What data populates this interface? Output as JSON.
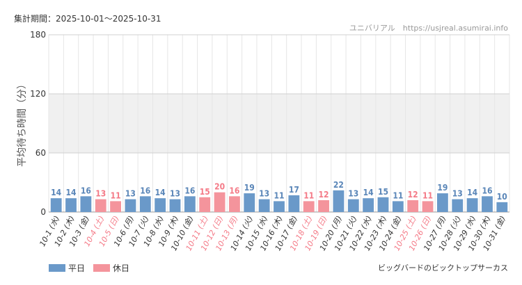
{
  "header": {
    "period": "集計期間：2025-10-01～2025-10-31",
    "site": "ユニバリアル　https://usjreal.asumirai.info"
  },
  "attraction": "ビッグバードのビックトップサーカス",
  "legend": {
    "weekday": {
      "label": "平日",
      "color": "#6a99c9"
    },
    "holiday": {
      "label": "休日",
      "color": "#f4949c"
    }
  },
  "chart_data": {
    "type": "bar",
    "title": "",
    "xlabel": "",
    "ylabel": "平均待ち時間（分）",
    "ylim": [
      0,
      180
    ],
    "yticks": [
      0,
      60,
      120,
      180
    ],
    "shaded_band": [
      60,
      120
    ],
    "grid": true,
    "legend_position": "bottom-left",
    "categories": [
      "10-1 (水)",
      "10-2 (木)",
      "10-3 (金)",
      "10-4 (土)",
      "10-5 (日)",
      "10-6 (月)",
      "10-7 (火)",
      "10-8 (水)",
      "10-9 (木)",
      "10-10 (金)",
      "10-11 (土)",
      "10-12 (日)",
      "10-13 (月)",
      "10-14 (火)",
      "10-15 (水)",
      "10-16 (木)",
      "10-17 (金)",
      "10-18 (土)",
      "10-19 (日)",
      "10-20 (月)",
      "10-21 (火)",
      "10-22 (水)",
      "10-23 (木)",
      "10-24 (金)",
      "10-25 (土)",
      "10-26 (日)",
      "10-27 (月)",
      "10-28 (火)",
      "10-29 (水)",
      "10-30 (木)",
      "10-31 (金)"
    ],
    "values": [
      14,
      14,
      16,
      13,
      11,
      13,
      16,
      14,
      13,
      16,
      15,
      20,
      16,
      19,
      13,
      11,
      17,
      11,
      12,
      22,
      13,
      14,
      15,
      11,
      12,
      11,
      19,
      13,
      14,
      16,
      10
    ],
    "day_type": [
      "weekday",
      "weekday",
      "weekday",
      "holiday",
      "holiday",
      "weekday",
      "weekday",
      "weekday",
      "weekday",
      "weekday",
      "holiday",
      "holiday",
      "holiday",
      "weekday",
      "weekday",
      "weekday",
      "weekday",
      "holiday",
      "holiday",
      "weekday",
      "weekday",
      "weekday",
      "weekday",
      "weekday",
      "holiday",
      "holiday",
      "weekday",
      "weekday",
      "weekday",
      "weekday",
      "weekday"
    ]
  }
}
